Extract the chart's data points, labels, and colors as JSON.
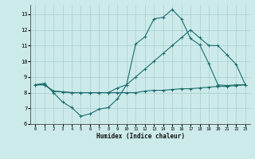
{
  "xlabel": "Humidex (Indice chaleur)",
  "background_color": "#cceaea",
  "grid_color": "#aacccc",
  "line_color": "#1a6b6b",
  "xlim": [
    -0.5,
    23.5
  ],
  "ylim": [
    6,
    13.6
  ],
  "yticks": [
    6,
    7,
    8,
    9,
    10,
    11,
    12,
    13
  ],
  "xticks": [
    0,
    1,
    2,
    3,
    4,
    5,
    6,
    7,
    8,
    9,
    10,
    11,
    12,
    13,
    14,
    15,
    16,
    17,
    18,
    19,
    20,
    21,
    22,
    23
  ],
  "line1_x": [
    0,
    1,
    2,
    3,
    4,
    5,
    6,
    7,
    8,
    9,
    10,
    11,
    12,
    13,
    14,
    15,
    16,
    17,
    18,
    19,
    20,
    21,
    22,
    23
  ],
  "line1_y": [
    8.5,
    8.6,
    8.0,
    7.4,
    7.05,
    6.5,
    6.65,
    6.95,
    7.05,
    7.6,
    8.5,
    11.1,
    11.55,
    12.7,
    12.8,
    13.3,
    12.7,
    11.45,
    11.05,
    9.85,
    8.5,
    8.45,
    8.5,
    8.5
  ],
  "line2_x": [
    0,
    1,
    2,
    3,
    4,
    5,
    6,
    7,
    8,
    9,
    10,
    11,
    12,
    13,
    14,
    15,
    16,
    17,
    18,
    19,
    20,
    21,
    22,
    23
  ],
  "line2_y": [
    8.5,
    8.5,
    8.1,
    8.05,
    8.0,
    8.0,
    8.0,
    8.0,
    8.0,
    8.3,
    8.5,
    9.0,
    9.5,
    10.0,
    10.5,
    11.0,
    11.5,
    12.0,
    11.5,
    11.0,
    11.0,
    10.4,
    9.8,
    8.5
  ],
  "line3_x": [
    0,
    1,
    2,
    3,
    4,
    5,
    6,
    7,
    8,
    9,
    10,
    11,
    12,
    13,
    14,
    15,
    16,
    17,
    18,
    19,
    20,
    21,
    22,
    23
  ],
  "line3_y": [
    8.5,
    8.5,
    8.1,
    8.05,
    8.0,
    8.0,
    8.0,
    8.0,
    8.0,
    8.0,
    8.0,
    8.0,
    8.1,
    8.15,
    8.15,
    8.2,
    8.25,
    8.25,
    8.3,
    8.35,
    8.4,
    8.4,
    8.45,
    8.5
  ]
}
